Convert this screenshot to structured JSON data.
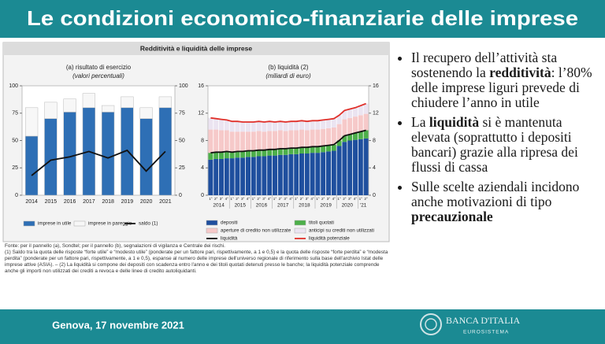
{
  "title": "Le condizioni economico-finanziarie delle imprese",
  "panel_title": "Redditività e liquidità delle imprese",
  "chart_data": [
    {
      "type": "bar",
      "stacked": true,
      "title": "(a) risultato di esercizio",
      "subtitle": "(valori percentuali)",
      "categories": [
        "2014",
        "2015",
        "2016",
        "2017",
        "2018",
        "2019",
        "2020",
        "2021"
      ],
      "ylim": [
        0,
        100
      ],
      "yticks": [
        0,
        25,
        50,
        75,
        100
      ],
      "y2lim": [
        0,
        100
      ],
      "y2ticks": [
        0,
        25,
        50,
        75,
        100
      ],
      "series": [
        {
          "name": "imprese in utile",
          "color": "#2e6fb5",
          "values": [
            54,
            70,
            76,
            80,
            76,
            80,
            70,
            80
          ]
        },
        {
          "name": "imprese in pareggio",
          "color": "#f7f7f7",
          "values": [
            26,
            15,
            12,
            13,
            6,
            10,
            10,
            10
          ]
        },
        {
          "name": "saldo (1)",
          "type": "line",
          "axis": "y2",
          "color": "#111111",
          "values": [
            18,
            32,
            35,
            40,
            34,
            41,
            22,
            40
          ]
        }
      ]
    },
    {
      "type": "bar",
      "stacked": true,
      "title": "(b) liquidità (2)",
      "subtitle": "(miliardi di euro)",
      "categories": [
        "1°",
        "2°",
        "3°",
        "4°",
        "1°",
        "2°",
        "3°",
        "4°",
        "1°",
        "2°",
        "3°",
        "4°",
        "1°",
        "2°",
        "3°",
        "4°",
        "1°",
        "2°",
        "3°",
        "4°",
        "1°",
        "2°",
        "3°",
        "4°",
        "1°",
        "2°",
        "3°",
        "4°",
        "1°",
        "2°"
      ],
      "years": [
        "2014",
        "2015",
        "2016",
        "2017",
        "2018",
        "2019",
        "2020",
        "'21"
      ],
      "ylim": [
        0,
        16
      ],
      "yticks": [
        0,
        4,
        8,
        12,
        16
      ],
      "y2lim": [
        0,
        16
      ],
      "y2ticks": [
        0,
        4,
        8,
        12,
        16
      ],
      "series": [
        {
          "name": "depositi",
          "color": "#1f4f9e",
          "values": [
            5.2,
            5.3,
            5.3,
            5.4,
            5.4,
            5.5,
            5.5,
            5.6,
            5.6,
            5.7,
            5.7,
            5.8,
            5.8,
            5.9,
            5.9,
            6.0,
            6.0,
            6.1,
            6.1,
            6.2,
            6.2,
            6.3,
            6.4,
            6.5,
            7.2,
            7.8,
            8.0,
            8.1,
            8.2,
            8.3
          ]
        },
        {
          "name": "titoli quotati",
          "color": "#4daf4a",
          "values": [
            1.0,
            1.0,
            1.0,
            1.0,
            0.9,
            0.9,
            0.9,
            0.9,
            0.9,
            0.9,
            0.9,
            0.9,
            0.9,
            0.9,
            0.9,
            0.9,
            0.9,
            0.9,
            0.9,
            0.9,
            0.9,
            0.9,
            0.9,
            0.9,
            0.8,
            0.9,
            0.9,
            1.0,
            1.1,
            1.2
          ]
        },
        {
          "name": "aperture di credito non utilizzate",
          "color": "#f6c9c9",
          "values": [
            3.4,
            3.3,
            3.2,
            3.1,
            3.0,
            2.9,
            2.9,
            2.8,
            2.8,
            2.8,
            2.7,
            2.7,
            2.7,
            2.7,
            2.6,
            2.6,
            2.6,
            2.6,
            2.5,
            2.5,
            2.5,
            2.5,
            2.5,
            2.5,
            2.4,
            2.4,
            2.4,
            2.4,
            2.4,
            2.4
          ]
        },
        {
          "name": "anticipi su crediti non utilizzati",
          "color": "#ebe4f1",
          "values": [
            1.7,
            1.6,
            1.6,
            1.5,
            1.5,
            1.5,
            1.4,
            1.4,
            1.4,
            1.4,
            1.4,
            1.4,
            1.3,
            1.3,
            1.3,
            1.3,
            1.3,
            1.3,
            1.3,
            1.3,
            1.3,
            1.3,
            1.3,
            1.3,
            1.3,
            1.3,
            1.3,
            1.3,
            1.4,
            1.5
          ]
        },
        {
          "name": "liquidità",
          "type": "line",
          "color": "#111111",
          "values": [
            6.2,
            6.3,
            6.3,
            6.4,
            6.3,
            6.4,
            6.4,
            6.5,
            6.5,
            6.6,
            6.6,
            6.7,
            6.7,
            6.8,
            6.8,
            6.9,
            6.9,
            7.0,
            7.0,
            7.1,
            7.1,
            7.2,
            7.3,
            7.4,
            8.0,
            8.7,
            8.9,
            9.1,
            9.3,
            9.5
          ]
        },
        {
          "name": "liquidità potenziale",
          "type": "line",
          "color": "#e0302a",
          "values": [
            11.3,
            11.2,
            11.1,
            11.0,
            10.8,
            10.8,
            10.7,
            10.7,
            10.7,
            10.8,
            10.7,
            10.8,
            10.7,
            10.8,
            10.7,
            10.8,
            10.8,
            10.9,
            10.8,
            10.9,
            10.9,
            11.0,
            11.1,
            11.2,
            11.7,
            12.4,
            12.6,
            12.8,
            13.1,
            13.4
          ]
        }
      ]
    }
  ],
  "notes": [
    "Fonte: per il pannello (a), Sondtel; per il pannello (b), segnalazioni di vigilanza e Centrale dei rischi.",
    "(1) Saldo tra la quota delle risposte “forte utile” e “modesto utile” (ponderate per un fattore pari, rispettivamente, a 1 e 0,5) e la quota delle risposte “forte perdita” e “modesta perdita” (ponderate per un fattore pari, rispettivamente, a 1 e 0,5), espanse al numero delle imprese dell'universo regionale di riferimento sulla base dell'archivio Istat delle imprese attive (ASIA). – (2) La liquidità si compone dei depositi con scadenza entro l'anno e dei titoli quotati detenuti presso le banche; la liquidità potenziale comprende anche gli importi non utilizzati dei crediti a revoca e delle linee di credito autoliquidanti."
  ],
  "bullets": [
    [
      "Il recupero dell’attività sta sostenendo la ",
      {
        "text": "redditività",
        "bold": true
      },
      ": l’80% delle imprese liguri prevede di chiudere l’anno in utile"
    ],
    [
      "La ",
      {
        "text": "liquidità",
        "bold": true
      },
      " si è mantenuta elevata (soprattutto i depositi bancari) grazie alla ripresa dei flussi di cassa"
    ],
    [
      "Sulle scelte aziendali incidono anche motivazioni di tipo ",
      {
        "text": "precauzionale",
        "bold": true
      }
    ]
  ],
  "footer": {
    "place_date": "Genova, 17 novembre 2021",
    "logo": "BANCA D'ITALIA",
    "logo_sub": "EUROSISTEMA"
  }
}
